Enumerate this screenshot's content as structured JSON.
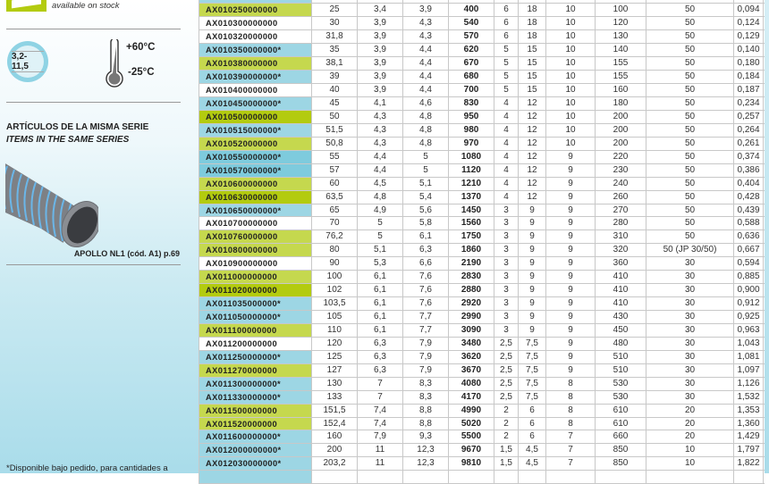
{
  "legend": {
    "stock_text": "available on stock",
    "stock_color": "#b3cb0f"
  },
  "specs": {
    "range": "3,2-11,5",
    "temp_max": "+60°C",
    "temp_min": "-25°C"
  },
  "series": {
    "heading_es": "ARTÍCULOS DE LA MISMA SERIE",
    "heading_en": "ITEMS IN THE SAME SERIES",
    "caption": "APOLLO NL1  (cód. A1) p.69"
  },
  "footnote": "*Disponible bajo pedido, para cantidades a",
  "colors": {
    "green": "#c5d84e",
    "dark_green": "#b3cb0f",
    "blue": "#9dd6e4",
    "dark_blue": "#7ecbdd",
    "white": "#ffffff"
  },
  "table": {
    "rows": [
      {
        "color": "blue",
        "cells": [
          "",
          "",
          "",
          "",
          "",
          "",
          "",
          "",
          "",
          "",
          ""
        ]
      },
      {
        "color": "green",
        "cells": [
          "AX010250000000",
          "25",
          "3,4",
          "3,9",
          "400",
          "6",
          "18",
          "10",
          "100",
          "50",
          "0,094"
        ]
      },
      {
        "color": "white",
        "cells": [
          "AX010300000000",
          "30",
          "3,9",
          "4,3",
          "540",
          "6",
          "18",
          "10",
          "120",
          "50",
          "0,124"
        ]
      },
      {
        "color": "white",
        "cells": [
          "AX010320000000",
          "31,8",
          "3,9",
          "4,3",
          "570",
          "6",
          "18",
          "10",
          "130",
          "50",
          "0,129"
        ]
      },
      {
        "color": "blue",
        "cells": [
          "AX010350000000*",
          "35",
          "3,9",
          "4,4",
          "620",
          "5",
          "15",
          "10",
          "140",
          "50",
          "0,140"
        ]
      },
      {
        "color": "green",
        "cells": [
          "AX010380000000",
          "38,1",
          "3,9",
          "4,4",
          "670",
          "5",
          "15",
          "10",
          "155",
          "50",
          "0,180"
        ]
      },
      {
        "color": "blue",
        "cells": [
          "AX010390000000*",
          "39",
          "3,9",
          "4,4",
          "680",
          "5",
          "15",
          "10",
          "155",
          "50",
          "0,184"
        ]
      },
      {
        "color": "white",
        "cells": [
          "AX010400000000",
          "40",
          "3,9",
          "4,4",
          "700",
          "5",
          "15",
          "10",
          "160",
          "50",
          "0,187"
        ]
      },
      {
        "color": "blue",
        "cells": [
          "AX010450000000*",
          "45",
          "4,1",
          "4,6",
          "830",
          "4",
          "12",
          "10",
          "180",
          "50",
          "0,234"
        ]
      },
      {
        "color": "dark_green",
        "cells": [
          "AX010500000000",
          "50",
          "4,3",
          "4,8",
          "950",
          "4",
          "12",
          "10",
          "200",
          "50",
          "0,257"
        ]
      },
      {
        "color": "blue",
        "cells": [
          "AX010515000000*",
          "51,5",
          "4,3",
          "4,8",
          "980",
          "4",
          "12",
          "10",
          "200",
          "50",
          "0,264"
        ]
      },
      {
        "color": "green",
        "cells": [
          "AX010520000000",
          "50,8",
          "4,3",
          "4,8",
          "970",
          "4",
          "12",
          "10",
          "200",
          "50",
          "0,261"
        ]
      },
      {
        "color": "dark_blue",
        "cells": [
          "AX010550000000*",
          "55",
          "4,4",
          "5",
          "1080",
          "4",
          "12",
          "9",
          "220",
          "50",
          "0,374"
        ]
      },
      {
        "color": "dark_blue",
        "cells": [
          "AX010570000000*",
          "57",
          "4,4",
          "5",
          "1120",
          "4",
          "12",
          "9",
          "230",
          "50",
          "0,386"
        ]
      },
      {
        "color": "green",
        "cells": [
          "AX010600000000",
          "60",
          "4,5",
          "5,1",
          "1210",
          "4",
          "12",
          "9",
          "240",
          "50",
          "0,404"
        ]
      },
      {
        "color": "dark_green",
        "cells": [
          "AX010630000000",
          "63,5",
          "4,8",
          "5,4",
          "1370",
          "4",
          "12",
          "9",
          "260",
          "50",
          "0,428"
        ]
      },
      {
        "color": "blue",
        "cells": [
          "AX010650000000*",
          "65",
          "4,9",
          "5,6",
          "1450",
          "3",
          "9",
          "9",
          "270",
          "50",
          "0,439"
        ]
      },
      {
        "color": "white",
        "cells": [
          "AX010700000000",
          "70",
          "5",
          "5,8",
          "1560",
          "3",
          "9",
          "9",
          "280",
          "50",
          "0,588"
        ]
      },
      {
        "color": "green",
        "cells": [
          "AX010760000000",
          "76,2",
          "5",
          "6,1",
          "1750",
          "3",
          "9",
          "9",
          "310",
          "50",
          "0,636"
        ]
      },
      {
        "color": "green",
        "cells": [
          "AX010800000000",
          "80",
          "5,1",
          "6,3",
          "1860",
          "3",
          "9",
          "9",
          "320",
          "50 (JP 30/50)",
          "0,667"
        ]
      },
      {
        "color": "white",
        "cells": [
          "AX010900000000",
          "90",
          "5,3",
          "6,6",
          "2190",
          "3",
          "9",
          "9",
          "360",
          "30",
          "0,594"
        ]
      },
      {
        "color": "green",
        "cells": [
          "AX011000000000",
          "100",
          "6,1",
          "7,6",
          "2830",
          "3",
          "9",
          "9",
          "410",
          "30",
          "0,885"
        ]
      },
      {
        "color": "dark_green",
        "cells": [
          "AX011020000000",
          "102",
          "6,1",
          "7,6",
          "2880",
          "3",
          "9",
          "9",
          "410",
          "30",
          "0,900"
        ]
      },
      {
        "color": "blue",
        "cells": [
          "AX011035000000*",
          "103,5",
          "6,1",
          "7,6",
          "2920",
          "3",
          "9",
          "9",
          "410",
          "30",
          "0,912"
        ]
      },
      {
        "color": "blue",
        "cells": [
          "AX011050000000*",
          "105",
          "6,1",
          "7,7",
          "2990",
          "3",
          "9",
          "9",
          "430",
          "30",
          "0,925"
        ]
      },
      {
        "color": "green",
        "cells": [
          "AX011100000000",
          "110",
          "6,1",
          "7,7",
          "3090",
          "3",
          "9",
          "9",
          "450",
          "30",
          "0,963"
        ]
      },
      {
        "color": "white",
        "cells": [
          "AX011200000000",
          "120",
          "6,3",
          "7,9",
          "3480",
          "2,5",
          "7,5",
          "9",
          "480",
          "30",
          "1,043"
        ]
      },
      {
        "color": "blue",
        "cells": [
          "AX011250000000*",
          "125",
          "6,3",
          "7,9",
          "3620",
          "2,5",
          "7,5",
          "9",
          "510",
          "30",
          "1,081"
        ]
      },
      {
        "color": "green",
        "cells": [
          "AX011270000000",
          "127",
          "6,3",
          "7,9",
          "3670",
          "2,5",
          "7,5",
          "9",
          "510",
          "30",
          "1,097"
        ]
      },
      {
        "color": "blue",
        "cells": [
          "AX011300000000*",
          "130",
          "7",
          "8,3",
          "4080",
          "2,5",
          "7,5",
          "8",
          "530",
          "30",
          "1,126"
        ]
      },
      {
        "color": "blue",
        "cells": [
          "AX011330000000*",
          "133",
          "7",
          "8,3",
          "4170",
          "2,5",
          "7,5",
          "8",
          "530",
          "30",
          "1,532"
        ]
      },
      {
        "color": "green",
        "cells": [
          "AX011500000000",
          "151,5",
          "7,4",
          "8,8",
          "4990",
          "2",
          "6",
          "8",
          "610",
          "20",
          "1,353"
        ]
      },
      {
        "color": "green",
        "cells": [
          "AX011520000000",
          "152,4",
          "7,4",
          "8,8",
          "5020",
          "2",
          "6",
          "8",
          "610",
          "20",
          "1,360"
        ]
      },
      {
        "color": "blue",
        "cells": [
          "AX011600000000*",
          "160",
          "7,9",
          "9,3",
          "5500",
          "2",
          "6",
          "7",
          "660",
          "20",
          "1,429"
        ]
      },
      {
        "color": "blue",
        "cells": [
          "AX012000000000*",
          "200",
          "11",
          "12,3",
          "9670",
          "1,5",
          "4,5",
          "7",
          "850",
          "10",
          "1,797"
        ]
      },
      {
        "color": "blue",
        "cells": [
          "AX012030000000*",
          "203,2",
          "11",
          "12,3",
          "9810",
          "1,5",
          "4,5",
          "7",
          "850",
          "10",
          "1,822"
        ]
      },
      {
        "color": "blue",
        "cells": [
          "",
          "",
          "",
          "",
          "",
          "",
          "",
          "",
          "",
          "",
          ""
        ]
      }
    ]
  }
}
